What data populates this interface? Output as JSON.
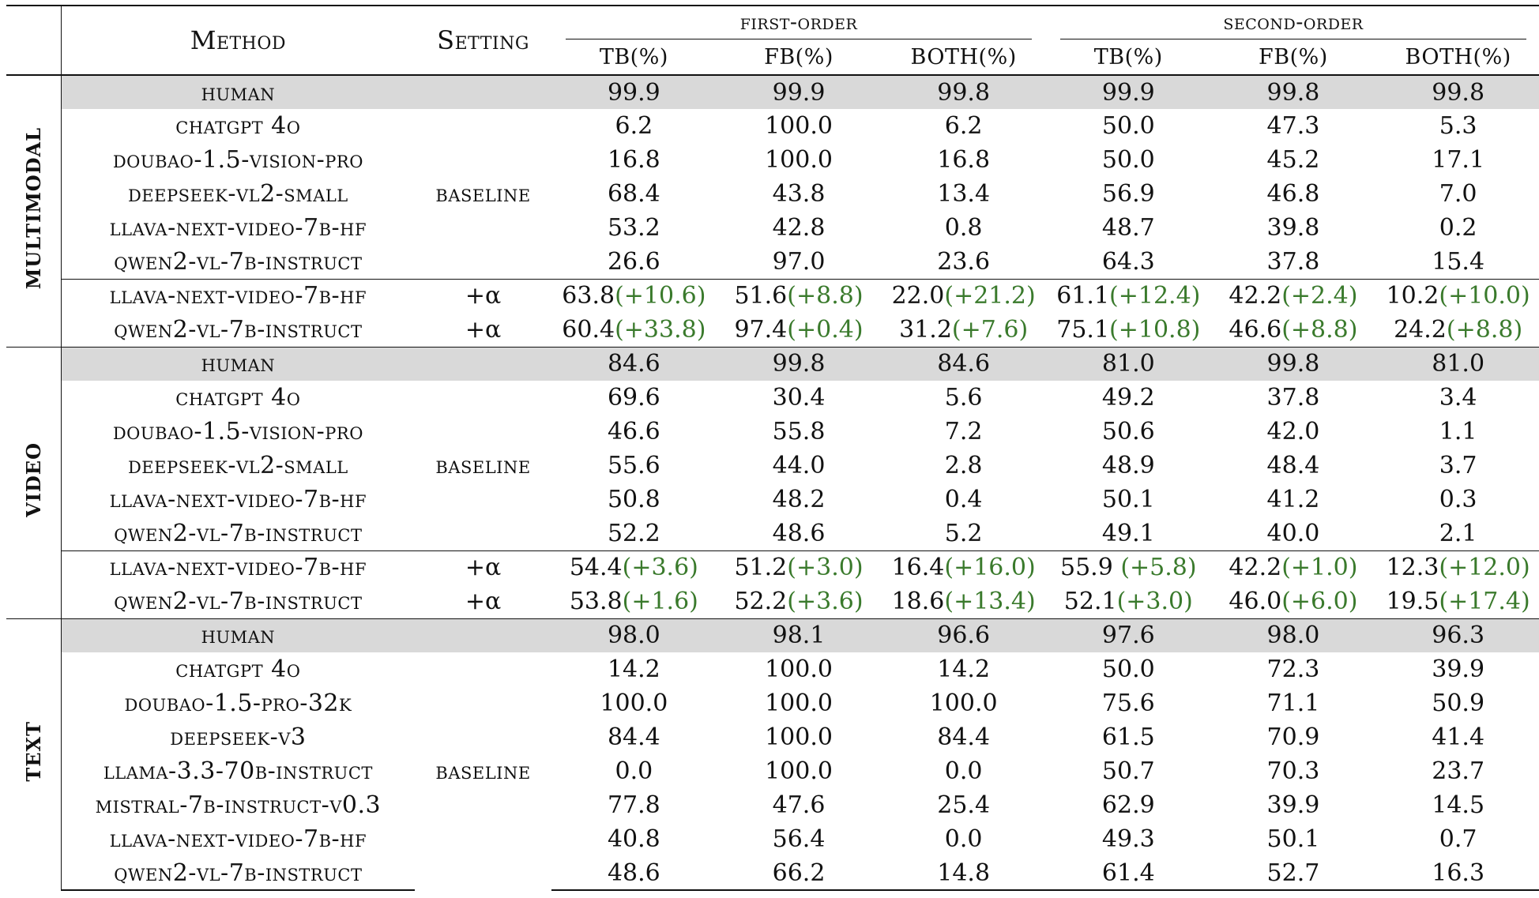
{
  "header": {
    "method": "Method",
    "setting": "Setting",
    "first_order": "first-order",
    "second_order": "second-order",
    "tb": "TB(%)",
    "fb": "FB(%)",
    "both": "BOTH(%)"
  },
  "sections": [
    {
      "label": "MULTIMODAL",
      "human": {
        "name": "human",
        "vals": [
          "99.9",
          "99.9",
          "99.8",
          "99.9",
          "99.8",
          "99.8"
        ]
      },
      "baseline_label": "baseline",
      "baseline": [
        {
          "name": "chatgpt 4o",
          "vals": [
            "6.2",
            "100.0",
            "6.2",
            "50.0",
            "47.3",
            "5.3"
          ]
        },
        {
          "name": "doubao-1.5-vision-pro",
          "vals": [
            "16.8",
            "100.0",
            "16.8",
            "50.0",
            "45.2",
            "17.1"
          ]
        },
        {
          "name": "deepseek-vl2-small",
          "vals": [
            "68.4",
            "43.8",
            "13.4",
            "56.9",
            "46.8",
            "7.0"
          ]
        },
        {
          "name": "llava-next-video-7b-hf",
          "vals": [
            "53.2",
            "42.8",
            "0.8",
            "48.7",
            "39.8",
            "0.2"
          ]
        },
        {
          "name": "qwen2-vl-7b-instruct",
          "vals": [
            "26.6",
            "97.0",
            "23.6",
            "64.3",
            "37.8",
            "15.4"
          ]
        }
      ],
      "alpha": [
        {
          "name": "llava-next-video-7b-hf",
          "setting": "+α",
          "vals": [
            "63.8",
            "51.6",
            "22.0",
            "61.1",
            "42.2",
            "10.2"
          ],
          "deltas": [
            "(+10.6)",
            "(+8.8)",
            "(+21.2)",
            "(+12.4)",
            "(+2.4)",
            "(+10.0)"
          ]
        },
        {
          "name": "qwen2-vl-7b-instruct",
          "setting": "+α",
          "vals": [
            "60.4",
            "97.4",
            "31.2",
            "75.1",
            "46.6",
            "24.2"
          ],
          "deltas": [
            "(+33.8)",
            "(+0.4)",
            "(+7.6)",
            "(+10.8)",
            "(+8.8)",
            "(+8.8)"
          ]
        }
      ]
    },
    {
      "label": "VIDEO",
      "human": {
        "name": "human",
        "vals": [
          "84.6",
          "99.8",
          "84.6",
          "81.0",
          "99.8",
          "81.0"
        ]
      },
      "baseline_label": "baseline",
      "baseline": [
        {
          "name": "chatgpt 4o",
          "vals": [
            "69.6",
            "30.4",
            "5.6",
            "49.2",
            "37.8",
            "3.4"
          ]
        },
        {
          "name": "doubao-1.5-vision-pro",
          "vals": [
            "46.6",
            "55.8",
            "7.2",
            "50.6",
            "42.0",
            "1.1"
          ]
        },
        {
          "name": "deepseek-vl2-small",
          "vals": [
            "55.6",
            "44.0",
            "2.8",
            "48.9",
            "48.4",
            "3.7"
          ]
        },
        {
          "name": "llava-next-video-7b-hf",
          "vals": [
            "50.8",
            "48.2",
            "0.4",
            "50.1",
            "41.2",
            "0.3"
          ]
        },
        {
          "name": "qwen2-vl-7b-instruct",
          "vals": [
            "52.2",
            "48.6",
            "5.2",
            "49.1",
            "40.0",
            "2.1"
          ]
        }
      ],
      "alpha": [
        {
          "name": "llava-next-video-7b-hf",
          "setting": "+α",
          "vals": [
            "54.4",
            "51.2",
            "16.4",
            "55.9 ",
            "42.2",
            "12.3"
          ],
          "deltas": [
            "(+3.6)",
            "(+3.0)",
            "(+16.0)",
            "(+5.8)",
            "(+1.0)",
            "(+12.0)"
          ]
        },
        {
          "name": "qwen2-vl-7b-instruct",
          "setting": "+α",
          "vals": [
            "53.8",
            "52.2",
            "18.6",
            "52.1",
            "46.0",
            "19.5"
          ],
          "deltas": [
            "(+1.6)",
            "(+3.6)",
            "(+13.4)",
            "(+3.0)",
            "(+6.0)",
            "(+17.4)"
          ]
        }
      ]
    },
    {
      "label": "TEXT",
      "human": {
        "name": "human",
        "vals": [
          "98.0",
          "98.1",
          "96.6",
          "97.6",
          "98.0",
          "96.3"
        ]
      },
      "baseline_label": "baseline",
      "baseline": [
        {
          "name": "chatgpt 4o",
          "vals": [
            "14.2",
            "100.0",
            "14.2",
            "50.0",
            "72.3",
            "39.9"
          ]
        },
        {
          "name": "doubao-1.5-pro-32k",
          "vals": [
            "100.0",
            "100.0",
            "100.0",
            "75.6",
            "71.1",
            "50.9"
          ]
        },
        {
          "name": "deepseek-v3",
          "vals": [
            "84.4",
            "100.0",
            "84.4",
            "61.5",
            "70.9",
            "41.4"
          ]
        },
        {
          "name": "llama-3.3-70b-instruct",
          "vals": [
            "0.0",
            "100.0",
            "0.0",
            "50.7",
            "70.3",
            "23.7"
          ]
        },
        {
          "name": "mistral-7b-instruct-v0.3",
          "vals": [
            "77.8",
            "47.6",
            "25.4",
            "62.9",
            "39.9",
            "14.5"
          ]
        },
        {
          "name": "llava-next-video-7b-hf",
          "vals": [
            "40.8",
            "56.4",
            "0.0",
            "49.3",
            "50.1",
            "0.7"
          ]
        },
        {
          "name": "qwen2-vl-7b-instruct",
          "vals": [
            "48.6",
            "66.2",
            "14.8",
            "61.4",
            "52.7",
            "16.3"
          ]
        }
      ],
      "alpha": []
    }
  ]
}
